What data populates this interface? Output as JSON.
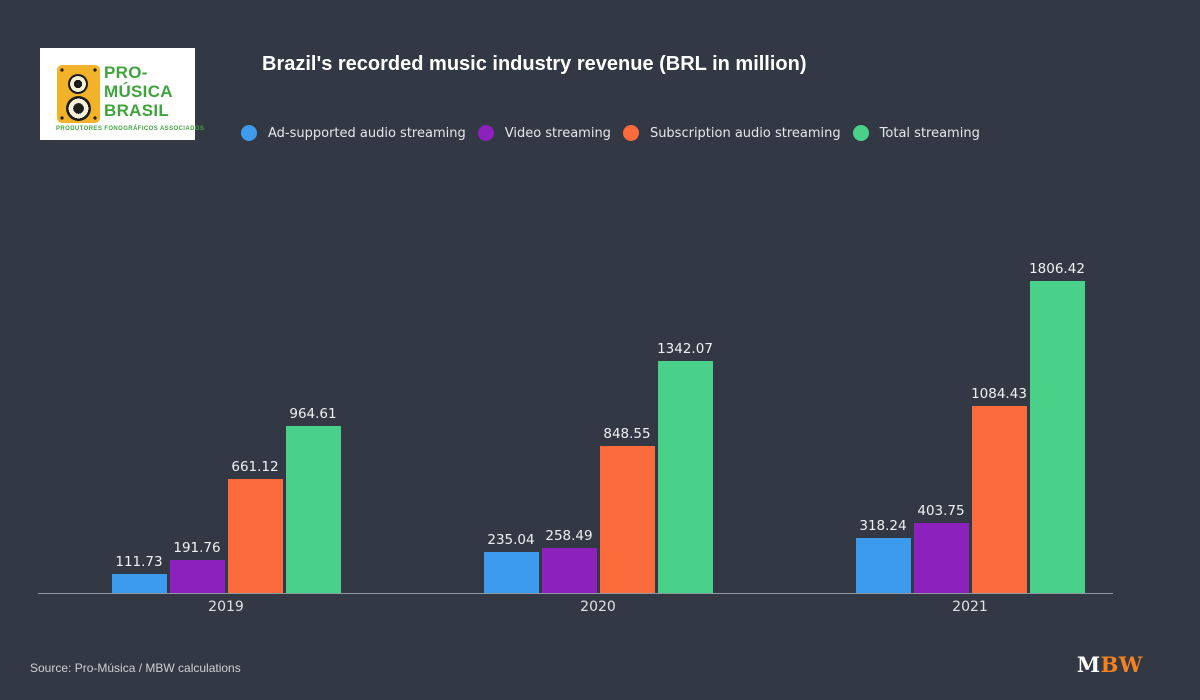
{
  "header": {
    "logo": {
      "line1": "PRO-",
      "line2": "MÚSICA",
      "line3": "BRASIL",
      "subtitle": "PRODUTORES FONOGRÁFICOS ASSOCIADOS"
    }
  },
  "chart_data": {
    "type": "bar",
    "title": "Brazil's recorded music industry revenue (BRL in million)",
    "categories": [
      "2019",
      "2020",
      "2021"
    ],
    "series": [
      {
        "name": "Ad-supported audio streaming",
        "color": "#3d9bed",
        "values": [
          111.73,
          235.04,
          318.24
        ]
      },
      {
        "name": "Video streaming",
        "color": "#8d21be",
        "values": [
          191.76,
          258.49,
          403.75
        ]
      },
      {
        "name": "Subscription audio streaming",
        "color": "#fb6b3b",
        "values": [
          661.12,
          848.55,
          1084.43
        ]
      },
      {
        "name": "Total streaming",
        "color": "#49d189",
        "values": [
          964.61,
          1342.07,
          1806.42
        ]
      }
    ],
    "ylim": [
      0,
      2390
    ],
    "grid": false,
    "legend_position": "top",
    "value_labels": true,
    "xlabel": "",
    "ylabel": ""
  },
  "footer": {
    "source": "Source: Pro-Música / MBW calculations",
    "brand": {
      "m": "M",
      "bw": "BW",
      "m_color": "#ffffff",
      "bw_color": "#f5821f"
    }
  },
  "colors": {
    "background": "#333944",
    "axis_line": "#9099a2",
    "card_bg": "#ffffff",
    "logo_green": "#41a33e",
    "logo_yellow": "#f2b32b",
    "title_text": "#ffffff",
    "legend_text": "#e4e6e9",
    "value_label_text": "#eef0f2",
    "tick_text": "#dfe2e5"
  }
}
